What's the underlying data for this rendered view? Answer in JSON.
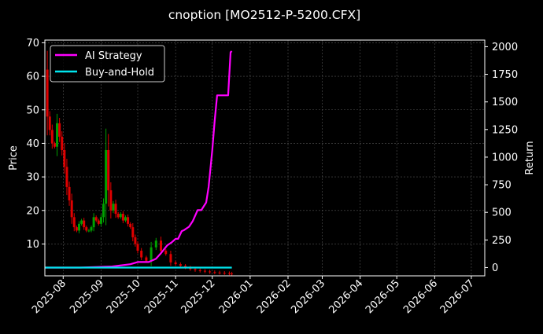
{
  "title": "cnoption [MO2512-P-5200.CFX]",
  "colors": {
    "background": "#000000",
    "axes": "#ffffff",
    "grid": "#555555",
    "strategy": "#ff00ff",
    "buy_and_hold": "#00e5ee",
    "candle_up": "#00a000",
    "candle_down": "#e00000"
  },
  "chart_data": {
    "type": "line",
    "title": "cnoption [MO2512-P-5200.CFX]",
    "ylabel_left": "Price",
    "ylabel_right": "Return",
    "grid": true,
    "legend_position": "top-left",
    "x_ticks": [
      "2025-08",
      "2025-09",
      "2025-10",
      "2025-11",
      "2025-12",
      "2026-01",
      "2026-02",
      "2026-03",
      "2026-04",
      "2026-05",
      "2026-06",
      "2026-07"
    ],
    "x_range": [
      "2025-07-17",
      "2026-07-12"
    ],
    "y_left_ticks": [
      10,
      20,
      30,
      40,
      50,
      60,
      70
    ],
    "y_left_range": [
      0.5,
      70.8
    ],
    "y_right_ticks": [
      0,
      250,
      500,
      750,
      1000,
      1250,
      1500,
      1750,
      2000
    ],
    "y_right_range": [
      -75,
      2060
    ],
    "series": [
      {
        "name": "AI Strategy",
        "axis": "right",
        "x": [
          "2025-07-17",
          "2025-08-15",
          "2025-09-10",
          "2025-09-25",
          "2025-10-01",
          "2025-10-10",
          "2025-10-16",
          "2025-10-20",
          "2025-10-25",
          "2025-10-29",
          "2025-11-01",
          "2025-11-03",
          "2025-11-06",
          "2025-11-08",
          "2025-11-12",
          "2025-11-15",
          "2025-11-19",
          "2025-11-22",
          "2025-11-26",
          "2025-11-28",
          "2025-12-01",
          "2025-12-03",
          "2025-12-05",
          "2025-12-08",
          "2025-12-14",
          "2025-12-16",
          "2025-12-17"
        ],
        "values": [
          0,
          0,
          10,
          30,
          50,
          50,
          80,
          130,
          200,
          230,
          260,
          260,
          330,
          340,
          370,
          420,
          520,
          520,
          590,
          730,
          1060,
          1330,
          1560,
          1560,
          1560,
          1950,
          1960
        ]
      },
      {
        "name": "Buy-and-Hold",
        "axis": "right",
        "x": [
          "2025-07-17",
          "2025-12-17"
        ],
        "values": [
          0,
          0
        ]
      }
    ],
    "price_series": {
      "axis": "left",
      "x": [
        "2025-07-17",
        "2025-07-19",
        "2025-07-21",
        "2025-07-23",
        "2025-07-25",
        "2025-07-27",
        "2025-07-29",
        "2025-07-31",
        "2025-08-02",
        "2025-08-04",
        "2025-08-06",
        "2025-08-08",
        "2025-08-10",
        "2025-08-12",
        "2025-08-14",
        "2025-08-16",
        "2025-08-18",
        "2025-08-20",
        "2025-08-22",
        "2025-08-24",
        "2025-08-26",
        "2025-08-28",
        "2025-08-30",
        "2025-09-01",
        "2025-09-03",
        "2025-09-05",
        "2025-09-07",
        "2025-09-09",
        "2025-09-11",
        "2025-09-13",
        "2025-09-15",
        "2025-09-17",
        "2025-09-19",
        "2025-09-21",
        "2025-09-23",
        "2025-09-25",
        "2025-09-27",
        "2025-09-29",
        "2025-10-01",
        "2025-10-04",
        "2025-10-08",
        "2025-10-12",
        "2025-10-16",
        "2025-10-20",
        "2025-10-24",
        "2025-10-28",
        "2025-11-01",
        "2025-11-05",
        "2025-11-09",
        "2025-11-13",
        "2025-11-17",
        "2025-11-21",
        "2025-11-25",
        "2025-11-29",
        "2025-12-03",
        "2025-12-07",
        "2025-12-11",
        "2025-12-15",
        "2025-12-17"
      ],
      "values": [
        62,
        48,
        44,
        40,
        39,
        46,
        42,
        38,
        33,
        27,
        23,
        18,
        15,
        14,
        16,
        17,
        15,
        14,
        14,
        15,
        18,
        17,
        16,
        18,
        22,
        38,
        26,
        20,
        22,
        19,
        18,
        19,
        17,
        18,
        16,
        15,
        12,
        10,
        8,
        6,
        5,
        9,
        11,
        8,
        7,
        4.5,
        4,
        3.5,
        3,
        2.5,
        2.2,
        2,
        1.8,
        1.6,
        1.5,
        1.4,
        1.3,
        1.2,
        1.1
      ]
    }
  }
}
